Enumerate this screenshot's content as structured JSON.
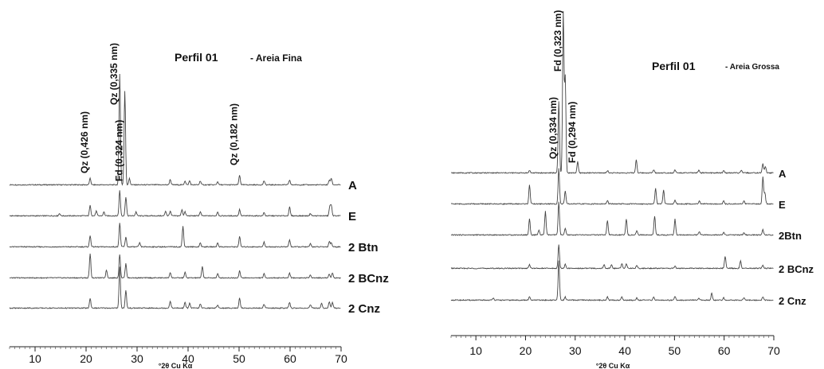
{
  "chart_data": [
    {
      "type": "line",
      "title": "Perfil 01",
      "subtitle": "- Areia Fina",
      "xlabel": "°2θ Cu Kα",
      "xlim": [
        5,
        70
      ],
      "xticks": [
        10,
        20,
        30,
        40,
        50,
        60,
        70
      ],
      "annotations": [
        {
          "text": "Qz (0,426 nm)",
          "x": 20.8
        },
        {
          "text": "Qz (0,335 nm)",
          "x": 26.6
        },
        {
          "text": "Fd (0,324 nm)",
          "x": 27.6
        },
        {
          "text": "Qz (0,182 nm)",
          "x": 50.1
        }
      ],
      "series": [
        {
          "name": "A",
          "peaks": [
            [
              20.8,
              8
            ],
            [
              26.6,
              140
            ],
            [
              27.6,
              118
            ],
            [
              28.5,
              8
            ],
            [
              36.5,
              7
            ],
            [
              39.4,
              5
            ],
            [
              40.3,
              5
            ],
            [
              42.4,
              5
            ],
            [
              45.8,
              4
            ],
            [
              50.1,
              12
            ],
            [
              54.9,
              5
            ],
            [
              59.9,
              6
            ],
            [
              67.7,
              6
            ],
            [
              68.1,
              8
            ]
          ]
        },
        {
          "name": "E",
          "peaks": [
            [
              14.8,
              3
            ],
            [
              20.8,
              13
            ],
            [
              22.0,
              6
            ],
            [
              23.5,
              5
            ],
            [
              26.6,
              32
            ],
            [
              27.8,
              24
            ],
            [
              29.8,
              5
            ],
            [
              35.6,
              6
            ],
            [
              36.5,
              6
            ],
            [
              38.8,
              8
            ],
            [
              39.4,
              5
            ],
            [
              42.4,
              5
            ],
            [
              45.8,
              5
            ],
            [
              50.1,
              8
            ],
            [
              54.9,
              4
            ],
            [
              59.9,
              11
            ],
            [
              64.0,
              3
            ],
            [
              67.8,
              12
            ],
            [
              68.1,
              12
            ]
          ]
        },
        {
          "name": "2 Btn",
          "peaks": [
            [
              20.8,
              14
            ],
            [
              26.6,
              30
            ],
            [
              27.8,
              12
            ],
            [
              30.5,
              5
            ],
            [
              39.0,
              26
            ],
            [
              42.4,
              5
            ],
            [
              45.8,
              5
            ],
            [
              50.1,
              13
            ],
            [
              54.9,
              6
            ],
            [
              59.9,
              9
            ],
            [
              64.0,
              4
            ],
            [
              67.7,
              7
            ],
            [
              68.1,
              5
            ]
          ]
        },
        {
          "name": "2 BCnz",
          "peaks": [
            [
              20.8,
              30
            ],
            [
              24.0,
              10
            ],
            [
              26.6,
              30
            ],
            [
              27.8,
              18
            ],
            [
              36.5,
              7
            ],
            [
              39.4,
              7
            ],
            [
              42.8,
              14
            ],
            [
              45.8,
              5
            ],
            [
              50.1,
              9
            ],
            [
              54.9,
              5
            ],
            [
              59.9,
              6
            ],
            [
              64.0,
              4
            ],
            [
              67.7,
              5
            ],
            [
              68.3,
              6
            ]
          ]
        },
        {
          "name": "2 Cnz",
          "peaks": [
            [
              20.8,
              12
            ],
            [
              26.6,
              52
            ],
            [
              27.8,
              22
            ],
            [
              36.5,
              9
            ],
            [
              39.4,
              7
            ],
            [
              40.3,
              6
            ],
            [
              42.4,
              5
            ],
            [
              45.8,
              4
            ],
            [
              50.1,
              13
            ],
            [
              54.9,
              5
            ],
            [
              59.9,
              7
            ],
            [
              64.0,
              4
            ],
            [
              66.2,
              6
            ],
            [
              67.7,
              8
            ],
            [
              68.3,
              7
            ]
          ]
        }
      ]
    },
    {
      "type": "line",
      "title": "Perfil 01",
      "subtitle": "- Areia Grossa",
      "xlabel": "°2θ Cu Kα",
      "xlim": [
        5,
        70
      ],
      "xticks": [
        10,
        20,
        30,
        40,
        50,
        60,
        70
      ],
      "annotations": [
        {
          "text": "Qz (0,334 nm)",
          "x": 26.7
        },
        {
          "text": "Fd (0,323 nm)",
          "x": 27.6
        },
        {
          "text": "Fd (0,294 nm)",
          "x": 30.5
        }
      ],
      "series": [
        {
          "name": "A",
          "peaks": [
            [
              20.8,
              3
            ],
            [
              26.7,
              90
            ],
            [
              27.6,
              205
            ],
            [
              28.0,
              120
            ],
            [
              30.5,
              14
            ],
            [
              36.5,
              3
            ],
            [
              42.3,
              17
            ],
            [
              45.8,
              4
            ],
            [
              50.1,
              4
            ],
            [
              54.9,
              3
            ],
            [
              59.9,
              3
            ],
            [
              63.5,
              3
            ],
            [
              67.8,
              12
            ],
            [
              68.3,
              8
            ]
          ]
        },
        {
          "name": "E",
          "peaks": [
            [
              20.8,
              24
            ],
            [
              26.7,
              45
            ],
            [
              28.0,
              16
            ],
            [
              36.5,
              4
            ],
            [
              46.2,
              20
            ],
            [
              47.8,
              18
            ],
            [
              50.1,
              5
            ],
            [
              55.0,
              4
            ],
            [
              59.9,
              4
            ],
            [
              64.0,
              4
            ],
            [
              67.8,
              34
            ],
            [
              68.2,
              14
            ]
          ]
        },
        {
          "name": "2Btn",
          "peaks": [
            [
              20.8,
              20
            ],
            [
              22.7,
              6
            ],
            [
              24.0,
              30
            ],
            [
              26.7,
              42
            ],
            [
              28.0,
              8
            ],
            [
              36.5,
              18
            ],
            [
              40.3,
              20
            ],
            [
              42.4,
              5
            ],
            [
              46.0,
              24
            ],
            [
              50.1,
              20
            ],
            [
              55.0,
              4
            ],
            [
              59.9,
              3
            ],
            [
              64.0,
              3
            ],
            [
              67.8,
              7
            ]
          ]
        },
        {
          "name": "2 BCnz",
          "peaks": [
            [
              20.8,
              5
            ],
            [
              26.7,
              30
            ],
            [
              28.0,
              5
            ],
            [
              35.8,
              5
            ],
            [
              37.3,
              5
            ],
            [
              39.4,
              6
            ],
            [
              40.3,
              6
            ],
            [
              42.4,
              4
            ],
            [
              50.1,
              3
            ],
            [
              60.2,
              15
            ],
            [
              63.3,
              9
            ],
            [
              67.8,
              4
            ]
          ]
        },
        {
          "name": "2 Cnz",
          "peaks": [
            [
              13.5,
              3
            ],
            [
              20.8,
              4
            ],
            [
              26.7,
              50
            ],
            [
              28.0,
              4
            ],
            [
              36.5,
              4
            ],
            [
              39.4,
              4
            ],
            [
              42.4,
              3
            ],
            [
              45.8,
              4
            ],
            [
              50.1,
              5
            ],
            [
              54.9,
              3
            ],
            [
              57.5,
              9
            ],
            [
              59.9,
              3
            ],
            [
              64.0,
              3
            ],
            [
              67.8,
              4
            ]
          ]
        }
      ]
    }
  ]
}
